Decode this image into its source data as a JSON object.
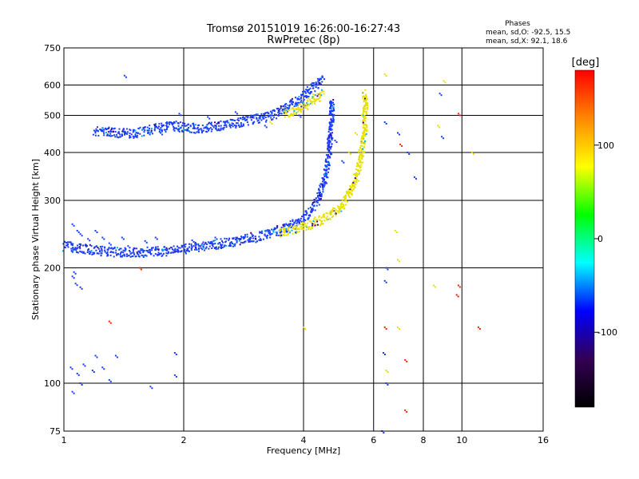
{
  "chart_data": {
    "type": "scatter",
    "title": "Tromsø 20151019 16:26:00-16:27:43",
    "subtitle": "RwPretec (8p)",
    "xlabel": "Frequency [MHz]",
    "ylabel": "Stationary phase Virtual Height [km]",
    "x_scale": "log",
    "y_scale": "log",
    "xlim": [
      1,
      16
    ],
    "ylim": [
      75,
      750
    ],
    "x_ticks": [
      1,
      2,
      4,
      6,
      8,
      10,
      16
    ],
    "y_ticks": [
      75,
      100,
      200,
      300,
      400,
      500,
      600,
      750
    ],
    "grid": true,
    "info": {
      "heading": "Phases",
      "line1": "mean, sd,O: -92.5, 15.5",
      "line2": "mean, sd,X:  92.1, 18.6"
    },
    "colorbar": {
      "label": "[deg]",
      "range": [
        -180,
        180
      ],
      "ticks": [
        100,
        0,
        -100
      ],
      "colors": [
        "#ff0000",
        "#ff8800",
        "#ffff00",
        "#00ff00",
        "#00ffff",
        "#0000ff",
        "#330055",
        "#000000"
      ]
    },
    "traces": [
      {
        "mode": "O",
        "phase": -100,
        "color": "#1a3cff",
        "points": [
          [
            1.2,
            455
          ],
          [
            1.35,
            450
          ],
          [
            1.5,
            448
          ],
          [
            1.7,
            460
          ],
          [
            1.85,
            470
          ],
          [
            2.0,
            465
          ],
          [
            2.2,
            462
          ],
          [
            2.5,
            470
          ],
          [
            2.8,
            480
          ],
          [
            3.1,
            490
          ],
          [
            3.4,
            505
          ],
          [
            3.7,
            530
          ],
          [
            4.0,
            560
          ],
          [
            4.2,
            585
          ],
          [
            4.5,
            620
          ]
        ]
      },
      {
        "mode": "O",
        "phase": -100,
        "color": "#1a3cff",
        "points": [
          [
            1.0,
            228
          ],
          [
            1.1,
            225
          ],
          [
            1.3,
            220
          ],
          [
            1.5,
            219
          ],
          [
            1.8,
            221
          ],
          [
            2.0,
            224
          ],
          [
            2.3,
            228
          ],
          [
            2.6,
            233
          ],
          [
            3.0,
            240
          ],
          [
            3.4,
            248
          ],
          [
            3.8,
            260
          ],
          [
            4.1,
            275
          ],
          [
            4.35,
            300
          ],
          [
            4.55,
            350
          ],
          [
            4.65,
            410
          ],
          [
            4.7,
            480
          ],
          [
            4.72,
            550
          ]
        ]
      },
      {
        "mode": "X",
        "phase": 100,
        "color": "#e8e000",
        "points": [
          [
            3.5,
            248
          ],
          [
            4.0,
            255
          ],
          [
            4.5,
            268
          ],
          [
            5.0,
            290
          ],
          [
            5.3,
            320
          ],
          [
            5.5,
            360
          ],
          [
            5.62,
            410
          ],
          [
            5.7,
            460
          ],
          [
            5.72,
            520
          ],
          [
            5.7,
            570
          ]
        ]
      },
      {
        "mode": "X",
        "phase": 100,
        "color": "#e8e000",
        "points": [
          [
            3.6,
            502
          ],
          [
            3.9,
            520
          ],
          [
            4.2,
            545
          ],
          [
            4.5,
            570
          ]
        ]
      }
    ],
    "scatter": [
      {
        "name": "O",
        "phase": -100,
        "color": "#1a3cff",
        "points": [
          [
            1.05,
            260
          ],
          [
            1.08,
            250
          ],
          [
            1.1,
            245
          ],
          [
            1.15,
            238
          ],
          [
            1.2,
            250
          ],
          [
            1.25,
            240
          ],
          [
            1.3,
            232
          ],
          [
            1.4,
            240
          ],
          [
            1.45,
            228
          ],
          [
            1.6,
            235
          ],
          [
            1.7,
            240
          ],
          [
            2.1,
            236
          ],
          [
            2.4,
            240
          ],
          [
            1.05,
            190
          ],
          [
            1.07,
            182
          ],
          [
            1.1,
            178
          ],
          [
            1.06,
            195
          ],
          [
            1.04,
            110
          ],
          [
            1.08,
            106
          ],
          [
            1.12,
            112
          ],
          [
            1.18,
            108
          ],
          [
            1.25,
            110
          ],
          [
            1.3,
            102
          ],
          [
            1.05,
            95
          ],
          [
            1.1,
            100
          ],
          [
            1.2,
            118
          ],
          [
            1.35,
            118
          ],
          [
            1.9,
            120
          ],
          [
            1.9,
            105
          ],
          [
            1.65,
            98
          ],
          [
            1.42,
            635
          ],
          [
            6.4,
            480
          ],
          [
            6.45,
            100
          ],
          [
            6.9,
            450
          ],
          [
            7.3,
            400
          ],
          [
            7.6,
            345
          ],
          [
            8.8,
            570
          ],
          [
            8.9,
            440
          ],
          [
            6.3,
            75
          ],
          [
            6.35,
            120
          ],
          [
            6.4,
            185
          ],
          [
            6.45,
            200
          ],
          [
            1.75,
            450
          ],
          [
            1.95,
            505
          ],
          [
            2.3,
            495
          ],
          [
            2.7,
            510
          ],
          [
            3.2,
            470
          ],
          [
            3.9,
            500
          ],
          [
            4.8,
            430
          ],
          [
            5.0,
            380
          ]
        ]
      },
      {
        "name": "X",
        "phase": 100,
        "color": "#e8e000",
        "points": [
          [
            4.0,
            140
          ],
          [
            5.2,
            400
          ],
          [
            5.4,
            450
          ],
          [
            5.6,
            500
          ],
          [
            6.4,
            640
          ],
          [
            6.8,
            250
          ],
          [
            6.9,
            140
          ],
          [
            6.9,
            210
          ],
          [
            8.5,
            180
          ],
          [
            8.7,
            470
          ],
          [
            9.0,
            615
          ],
          [
            10.6,
            400
          ],
          [
            6.45,
            108
          ],
          [
            3.3,
            480
          ],
          [
            3.6,
            512
          ]
        ]
      },
      {
        "name": "red",
        "phase": 170,
        "color": "#ff2000",
        "points": [
          [
            6.4,
            140
          ],
          [
            7.2,
            115
          ],
          [
            7.2,
            85
          ],
          [
            9.8,
            505
          ],
          [
            9.8,
            180
          ],
          [
            9.7,
            170
          ],
          [
            11.0,
            140
          ],
          [
            7.0,
            420
          ],
          [
            1.55,
            200
          ],
          [
            1.3,
            145
          ]
        ]
      }
    ]
  }
}
